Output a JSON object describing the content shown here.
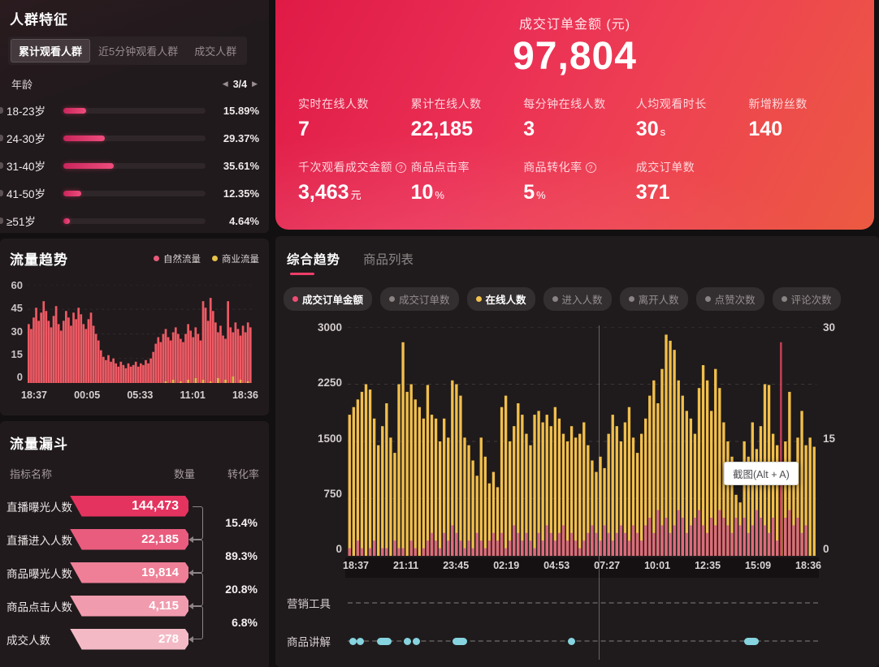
{
  "audience": {
    "title": "人群特征",
    "tabs": [
      {
        "label": "累计观看人群",
        "active": true
      },
      {
        "label": "近5分钟观看人群",
        "active": false
      },
      {
        "label": "成交人群",
        "active": false
      }
    ],
    "dimension_label": "年龄",
    "pagination": {
      "prev": "◀",
      "current": "3/4",
      "next": "▶"
    },
    "rows": [
      {
        "label": "18-23岁",
        "pct": "15.89%",
        "value": 15.89
      },
      {
        "label": "24-30岁",
        "pct": "29.37%",
        "value": 29.37
      },
      {
        "label": "31-40岁",
        "pct": "35.61%",
        "value": 35.61
      },
      {
        "label": "41-50岁",
        "pct": "12.35%",
        "value": 12.35
      },
      {
        "label": "≥51岁",
        "pct": "4.64%",
        "value": 4.64
      }
    ]
  },
  "hero": {
    "title": "成交订单金额 (元)",
    "amount": "97,804",
    "stats_row1": [
      {
        "label": "实时在线人数",
        "value": "7",
        "unit": ""
      },
      {
        "label": "累计在线人数",
        "value": "22,185",
        "unit": ""
      },
      {
        "label": "每分钟在线人数",
        "value": "3",
        "unit": ""
      },
      {
        "label": "人均观看时长",
        "value": "30",
        "unit": "s"
      },
      {
        "label": "新增粉丝数",
        "value": "140",
        "unit": ""
      }
    ],
    "stats_row2": [
      {
        "label": "千次观看成交金额",
        "help": true,
        "value": "3,463",
        "unit": "元"
      },
      {
        "label": "商品点击率",
        "help": false,
        "value": "10",
        "unit": "%"
      },
      {
        "label": "商品转化率",
        "help": true,
        "value": "5",
        "unit": "%"
      },
      {
        "label": "成交订单数",
        "help": false,
        "value": "371",
        "unit": ""
      }
    ]
  },
  "trend_panel": {
    "title": "流量趋势",
    "legend": [
      {
        "label": "自然流量",
        "color": "#e85a78"
      },
      {
        "label": "商业流量",
        "color": "#e6c24b"
      }
    ]
  },
  "funnel": {
    "title": "流量漏斗",
    "headers": [
      "指标名称",
      "数量",
      "转化率"
    ],
    "rows": [
      {
        "label": "直播曝光人数",
        "value": "144,473",
        "color": "#e4335f"
      },
      {
        "label": "直播进入人数",
        "value": "22,185",
        "color": "#e95c7e"
      },
      {
        "label": "商品曝光人数",
        "value": "19,814",
        "color": "#ee7f97"
      },
      {
        "label": "商品点击人数",
        "value": "4,115",
        "color": "#f09cae"
      },
      {
        "label": "成交人数",
        "value": "278",
        "color": "#f3bac6"
      }
    ],
    "conversions": [
      "15.4%",
      "89.3%",
      "20.8%",
      "6.8%"
    ]
  },
  "main": {
    "tabs": [
      {
        "label": "综合趋势",
        "active": true
      },
      {
        "label": "商品列表",
        "active": false
      }
    ],
    "chips": [
      {
        "label": "成交订单金额",
        "dot": "#ef4d75",
        "active": true
      },
      {
        "label": "成交订单数",
        "dot": "#8a8384",
        "active": false
      },
      {
        "label": "在线人数",
        "dot": "#f2c24c",
        "active": true
      },
      {
        "label": "进入人数",
        "dot": "#8a8384",
        "active": false
      },
      {
        "label": "离开人数",
        "dot": "#8a8384",
        "active": false
      },
      {
        "label": "点赞次数",
        "dot": "#8a8384",
        "active": false
      },
      {
        "label": "评论次数",
        "dot": "#8a8384",
        "active": false
      }
    ],
    "tooltip": "截图(Alt + A)",
    "marker_rows": [
      {
        "label": "营销工具",
        "dots": []
      },
      {
        "label": "商品讲解",
        "dots": [
          {
            "p": 0.3,
            "wide": false
          },
          {
            "p": 1.9,
            "wide": false
          },
          {
            "p": 6.3,
            "wide": true
          },
          {
            "p": 12.0,
            "wide": false
          },
          {
            "p": 13.9,
            "wide": false
          },
          {
            "p": 22.2,
            "wide": true
          },
          {
            "p": 46.8,
            "wide": false
          },
          {
            "p": 84.2,
            "wide": true
          }
        ]
      }
    ]
  },
  "chart_data": [
    {
      "type": "bar",
      "title": "流量趋势",
      "x_ticks": [
        "18:37",
        "00:05",
        "05:33",
        "11:01",
        "18:36"
      ],
      "y_ticks": [
        60,
        45,
        30,
        15,
        0
      ],
      "ylim": [
        0,
        60
      ],
      "legend_position": "top-right",
      "series": [
        {
          "name": "自然流量",
          "color": "#ee5a64",
          "values": [
            36,
            33,
            40,
            46,
            38,
            43,
            50,
            44,
            38,
            34,
            41,
            47,
            36,
            32,
            38,
            44,
            40,
            35,
            43,
            39,
            46,
            42,
            36,
            33,
            39,
            43,
            35,
            30,
            26,
            20,
            16,
            14,
            17,
            13,
            15,
            12,
            10,
            13,
            11,
            9,
            12,
            10,
            11,
            13,
            10,
            12,
            11,
            14,
            12,
            15,
            19,
            24,
            28,
            25,
            30,
            33,
            28,
            26,
            31,
            34,
            30,
            27,
            25,
            30,
            36,
            32,
            28,
            34,
            30,
            26,
            50,
            46,
            38,
            52,
            44,
            37,
            31,
            35,
            29,
            27,
            50,
            34,
            31,
            37,
            33,
            29,
            35,
            31,
            37,
            34
          ]
        },
        {
          "name": "商业流量",
          "color": "#e2b94a",
          "values": [
            0,
            0,
            0,
            0,
            0,
            0,
            0,
            0,
            0,
            0,
            0,
            0,
            0,
            0,
            0,
            0,
            0,
            0,
            0,
            0,
            0,
            0,
            0,
            0,
            0,
            0,
            0,
            0,
            0,
            0,
            0,
            0,
            0,
            0,
            0,
            0,
            0,
            0,
            0,
            0,
            0,
            0,
            0,
            0,
            0,
            0,
            0,
            0,
            0,
            0,
            0,
            0,
            0,
            0,
            0,
            1,
            0,
            0,
            2,
            0,
            0,
            1,
            0,
            0,
            2,
            0,
            0,
            3,
            0,
            0,
            2,
            0,
            0,
            1,
            0,
            0,
            3,
            0,
            0,
            2,
            0,
            0,
            4,
            0,
            0,
            2,
            0,
            0,
            1,
            0
          ]
        }
      ]
    },
    {
      "type": "bar",
      "title": "综合趋势",
      "x_ticks": [
        "18:37",
        "21:11",
        "23:45",
        "02:19",
        "04:53",
        "07:27",
        "10:01",
        "12:35",
        "15:09",
        "18:36"
      ],
      "y_left": {
        "ticks": [
          3000,
          2250,
          1500,
          750,
          0
        ],
        "lim": [
          0,
          3000
        ]
      },
      "y_right": {
        "ticks": [
          30,
          15,
          0
        ],
        "lim": [
          0,
          30
        ]
      },
      "crosshair_x_pct": 53.5,
      "series": [
        {
          "name": "在线人数",
          "axis": "left",
          "color": "#f2bf4b",
          "values": [
            1850,
            1950,
            2050,
            2150,
            2250,
            2180,
            1800,
            1450,
            1700,
            2000,
            1550,
            1350,
            2250,
            2800,
            2150,
            2250,
            2050,
            1950,
            1800,
            2240,
            1850,
            1800,
            1500,
            1800,
            1550,
            2300,
            2250,
            2100,
            1550,
            1450,
            1250,
            1050,
            1550,
            1300,
            950,
            1100,
            900,
            1950,
            2100,
            1500,
            1700,
            2000,
            1850,
            1600,
            1450,
            1850,
            1900,
            1750,
            1850,
            1700,
            1950,
            1800,
            1600,
            1500,
            1700,
            1550,
            1600,
            1750,
            1450,
            1250,
            1100,
            1300,
            1150,
            1600,
            1850,
            1700,
            1500,
            1750,
            1950,
            1550,
            1350,
            1600,
            1800,
            2100,
            2300,
            2000,
            2450,
            2900,
            2820,
            2700,
            2300,
            2100,
            1900,
            1800,
            1600,
            2200,
            2500,
            2300,
            1900,
            2450,
            2200,
            1750,
            1500,
            1300,
            800,
            700,
            1500,
            1300,
            1750,
            1400,
            1700,
            2250,
            2240,
            1600,
            1450,
            1200,
            1500,
            2150,
            1200,
            1550,
            1900,
            1450,
            1550,
            1430
          ]
        },
        {
          "name": "成交订单金额",
          "axis": "right",
          "color": "#dd6b7b",
          "spike_color": "#c04158",
          "values": [
            1,
            0,
            2,
            1,
            0,
            1,
            2,
            0,
            1,
            1,
            0,
            2,
            1,
            1,
            0,
            2,
            1,
            0,
            1,
            2,
            3,
            2,
            1,
            3,
            2,
            4,
            3,
            2,
            1,
            2,
            1,
            3,
            2,
            1,
            2,
            3,
            2,
            3,
            1,
            2,
            4,
            3,
            2,
            3,
            2,
            1,
            3,
            2,
            4,
            3,
            2,
            3,
            4,
            2,
            3,
            2,
            1,
            2,
            3,
            4,
            3,
            2,
            4,
            3,
            2,
            3,
            4,
            3,
            2,
            4,
            3,
            2,
            4,
            5,
            3,
            6,
            4,
            5,
            3,
            4,
            6,
            5,
            3,
            4,
            5,
            6,
            4,
            3,
            5,
            4,
            6,
            5,
            4,
            3,
            5,
            4,
            5,
            3,
            4,
            6,
            5,
            4,
            3,
            5,
            2,
            28,
            5,
            6,
            4,
            5,
            3,
            4
          ]
        }
      ]
    }
  ]
}
